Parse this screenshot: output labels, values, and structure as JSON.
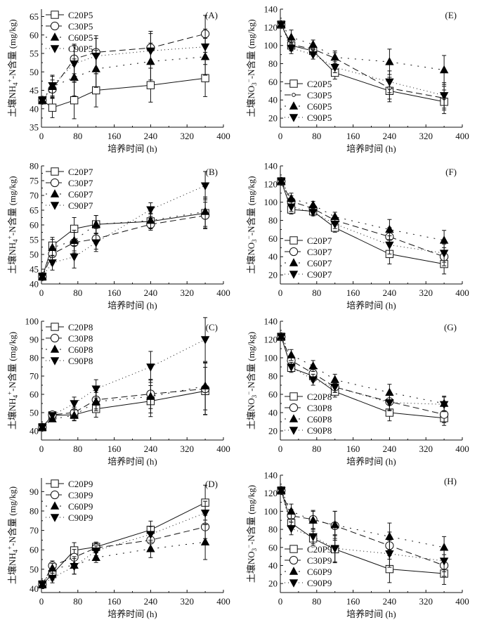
{
  "chart_data": [
    {
      "id": "A",
      "type": "line",
      "panel_label": "(A)",
      "xlabel": "培养时间 (h)",
      "ylabel_pre": "土壤NH",
      "ylabel_sub": "4",
      "ylabel_sup": "+",
      "ylabel_post": "-N含量 (mg/kg)",
      "xlim": [
        0,
        400
      ],
      "ylim": [
        35,
        67
      ],
      "xticks": [
        0,
        80,
        160,
        240,
        320,
        400
      ],
      "yticks": [
        35,
        40,
        45,
        50,
        55,
        60,
        65
      ],
      "legend_position": "top-left",
      "x": [
        2,
        24,
        72,
        120,
        240,
        360
      ],
      "series": [
        {
          "name": "C20P5",
          "marker": "square-open",
          "line": "solid",
          "values": [
            42.3,
            40.3,
            42.3,
            45.0,
            46.4,
            48.3
          ],
          "errors": [
            1.0,
            2.7,
            5.0,
            4.5,
            4.6,
            5.0
          ]
        },
        {
          "name": "C30P5",
          "marker": "circle-open",
          "line": "dashed",
          "values": [
            42.3,
            45.3,
            53.5,
            55.3,
            56.5,
            60.3
          ],
          "errors": [
            1.0,
            2.5,
            4.0,
            4.5,
            4.5,
            5.0
          ]
        },
        {
          "name": "C60P5",
          "marker": "triangle-up",
          "line": "dashdot",
          "values": [
            42.3,
            46.0,
            48.5,
            50.8,
            52.8,
            54.1
          ],
          "errors": [
            1.0,
            2.8,
            5.0,
            5.0,
            5.0,
            5.0
          ]
        },
        {
          "name": "C90P5",
          "marker": "triangle-down",
          "line": "dotted",
          "values": [
            42.3,
            46.3,
            52.2,
            54.3,
            55.7,
            56.8
          ],
          "errors": [
            1.0,
            2.8,
            5.0,
            4.8,
            4.7,
            4.8
          ]
        }
      ]
    },
    {
      "id": "E",
      "type": "line",
      "panel_label": "(E)",
      "xlabel": "培养时间 (h)",
      "ylabel_pre": "土壤NO",
      "ylabel_sub": "3",
      "ylabel_sup": "−",
      "ylabel_post": "-N含量 (mg/kg)",
      "xlim": [
        0,
        400
      ],
      "ylim": [
        10,
        140
      ],
      "xticks": [
        0,
        80,
        160,
        240,
        320,
        400
      ],
      "yticks": [
        20,
        40,
        60,
        80,
        100,
        120,
        140
      ],
      "legend_position": "bottom-left",
      "x": [
        2,
        24,
        72,
        120,
        240,
        360
      ],
      "series": [
        {
          "name": "C20P5",
          "marker": "square-open",
          "line": "solid",
          "values": [
            123,
            100,
            94,
            70,
            50,
            38
          ],
          "errors": [
            3,
            6,
            5,
            7,
            12,
            13
          ]
        },
        {
          "name": "C30P5",
          "marker": "circle-small",
          "line": "dashed",
          "values": [
            123,
            101,
            96,
            86,
            53,
            42
          ],
          "errors": [
            3,
            6,
            5,
            6,
            12,
            13
          ]
        },
        {
          "name": "C60P5",
          "marker": "triangle-up",
          "line": "dashdot",
          "values": [
            123,
            109,
            101,
            87,
            82,
            73
          ],
          "errors": [
            3,
            8,
            5,
            7,
            14,
            16
          ]
        },
        {
          "name": "C90P5",
          "marker": "triangle-down",
          "line": "dotted",
          "values": [
            123,
            97,
            90,
            76,
            60,
            45
          ],
          "errors": [
            3,
            6,
            5,
            6,
            12,
            14
          ]
        }
      ]
    },
    {
      "id": "B",
      "type": "line",
      "panel_label": "(B)",
      "xlabel": "培养时间 (h)",
      "ylabel_pre": "土壤NH",
      "ylabel_sub": "4",
      "ylabel_sup": "+",
      "ylabel_post": "-N含量 (mg/kg)",
      "xlim": [
        0,
        400
      ],
      "ylim": [
        40,
        80
      ],
      "xticks": [
        0,
        80,
        160,
        240,
        320,
        400
      ],
      "yticks": [
        40,
        45,
        50,
        55,
        60,
        65,
        70,
        75,
        80
      ],
      "legend_position": "top-left",
      "x": [
        2,
        24,
        72,
        120,
        240,
        360
      ],
      "series": [
        {
          "name": "C20P7",
          "marker": "square-open",
          "line": "solid",
          "values": [
            42.5,
            53.0,
            58.7,
            60.2,
            61.2,
            64.0
          ],
          "errors": [
            1.0,
            2.8,
            3.8,
            3.0,
            2.5,
            5.0
          ]
        },
        {
          "name": "C30P7",
          "marker": "circle-open",
          "line": "dashed",
          "values": [
            42.5,
            50.2,
            54.0,
            55.3,
            60.2,
            63.2
          ],
          "errors": [
            1.0,
            2.5,
            3.5,
            3.5,
            2.0,
            4.5
          ]
        },
        {
          "name": "C60P7",
          "marker": "triangle-up",
          "line": "dashdot",
          "values": [
            42.5,
            52.3,
            54.7,
            60.2,
            61.5,
            64.5
          ],
          "errors": [
            1.0,
            2.8,
            3.5,
            3.0,
            2.5,
            5.0
          ]
        },
        {
          "name": "C90P7",
          "marker": "triangle-down",
          "line": "dotted",
          "values": [
            42.5,
            47.2,
            49.2,
            54.0,
            65.2,
            73.3
          ],
          "errors": [
            1.0,
            2.5,
            3.8,
            3.0,
            2.3,
            4.8
          ]
        }
      ]
    },
    {
      "id": "F",
      "type": "line",
      "panel_label": "(F)",
      "xlabel": "培养时间 (h)",
      "ylabel_pre": "土壤NO",
      "ylabel_sub": "3",
      "ylabel_sup": "−",
      "ylabel_post": "-N含量 (mg/kg)",
      "xlim": [
        0,
        400
      ],
      "ylim": [
        10,
        140
      ],
      "xticks": [
        0,
        80,
        160,
        240,
        320,
        400
      ],
      "yticks": [
        20,
        40,
        60,
        80,
        100,
        120,
        140
      ],
      "legend_position": "bottom-left",
      "x": [
        2,
        24,
        72,
        120,
        240,
        360
      ],
      "series": [
        {
          "name": "C20P7",
          "marker": "square-open",
          "line": "solid",
          "values": [
            123,
            92,
            90,
            72,
            43,
            32
          ],
          "errors": [
            3,
            5,
            4,
            5,
            11,
            11
          ]
        },
        {
          "name": "C30P7",
          "marker": "circle-open",
          "line": "dashed",
          "values": [
            123,
            101,
            93,
            80,
            62,
            40
          ],
          "errors": [
            3,
            6,
            4,
            5,
            10,
            10
          ]
        },
        {
          "name": "C60P7",
          "marker": "triangle-up",
          "line": "dashdot",
          "values": [
            123,
            104,
            97,
            84,
            70,
            58
          ],
          "errors": [
            3,
            6,
            4,
            5,
            11,
            11
          ]
        },
        {
          "name": "C90P7",
          "marker": "triangle-down",
          "line": "dotted",
          "values": [
            123,
            95,
            89,
            76,
            53,
            44
          ],
          "errors": [
            3,
            5,
            4,
            5,
            10,
            10
          ]
        }
      ]
    },
    {
      "id": "C",
      "type": "line",
      "panel_label": "(C)",
      "xlabel": "培养时间 (h)",
      "ylabel_pre": "土壤NH",
      "ylabel_sub": "4",
      "ylabel_sup": "+",
      "ylabel_post": "-N含量 (mg/kg)",
      "xlim": [
        0,
        400
      ],
      "ylim": [
        35,
        100
      ],
      "xticks": [
        0,
        80,
        160,
        240,
        320,
        400
      ],
      "yticks": [
        40,
        50,
        60,
        70,
        80,
        90,
        100
      ],
      "legend_position": "top-left",
      "x": [
        2,
        24,
        72,
        120,
        240,
        360
      ],
      "series": [
        {
          "name": "C20P8",
          "marker": "square-open",
          "line": "solid",
          "values": [
            42.0,
            48.5,
            48.8,
            52.0,
            56.3,
            61.8
          ],
          "errors": [
            1.0,
            1.5,
            3.0,
            4.5,
            8.5,
            13.0
          ]
        },
        {
          "name": "C30P8",
          "marker": "circle-open",
          "line": "dashed",
          "values": [
            42.0,
            48.8,
            50.0,
            57.0,
            60.2,
            63.0
          ],
          "errors": [
            1.0,
            1.5,
            3.0,
            5.0,
            8.0,
            14.0
          ]
        },
        {
          "name": "C60P8",
          "marker": "triangle-up",
          "line": "dashdot",
          "values": [
            42.0,
            46.5,
            48.5,
            56.0,
            58.8,
            64.5
          ],
          "errors": [
            1.0,
            1.5,
            3.0,
            5.0,
            9.0,
            13.0
          ]
        },
        {
          "name": "C90P8",
          "marker": "triangle-down",
          "line": "dotted",
          "values": [
            42.0,
            48.5,
            55.0,
            63.0,
            75.0,
            90.0
          ],
          "errors": [
            1.0,
            1.5,
            3.5,
            5.0,
            8.5,
            12.0
          ]
        }
      ]
    },
    {
      "id": "G",
      "type": "line",
      "panel_label": "(G)",
      "xlabel": "培养时间 (h)",
      "ylabel_pre": "土壤NO",
      "ylabel_sub": "3",
      "ylabel_sup": "−",
      "ylabel_post": "-N含量 (mg/kg)",
      "xlim": [
        0,
        400
      ],
      "ylim": [
        10,
        140
      ],
      "xticks": [
        0,
        80,
        160,
        240,
        320,
        400
      ],
      "yticks": [
        20,
        40,
        60,
        80,
        100,
        120,
        140
      ],
      "legend_position": "bottom-left",
      "x": [
        2,
        24,
        72,
        120,
        240,
        360
      ],
      "series": [
        {
          "name": "C20P8",
          "marker": "square-open",
          "line": "solid",
          "values": [
            123,
            89,
            80,
            63,
            40,
            34
          ],
          "errors": [
            3,
            5,
            6,
            6,
            9,
            8
          ]
        },
        {
          "name": "C30P8",
          "marker": "circle-open",
          "line": "dashed",
          "values": [
            123,
            97,
            83,
            68,
            52,
            38
          ],
          "errors": [
            3,
            6,
            6,
            6,
            9,
            9
          ]
        },
        {
          "name": "C60P8",
          "marker": "triangle-up",
          "line": "dashdot",
          "values": [
            123,
            103,
            91,
            76,
            62,
            50
          ],
          "errors": [
            3,
            6,
            6,
            6,
            9,
            8
          ]
        },
        {
          "name": "C90P8",
          "marker": "triangle-down",
          "line": "dotted",
          "values": [
            123,
            90,
            76,
            68,
            51,
            49
          ],
          "errors": [
            3,
            5,
            6,
            6,
            9,
            8
          ]
        }
      ]
    },
    {
      "id": "D",
      "type": "line",
      "panel_label": "(D)",
      "xlabel": "培养时间 (h)",
      "ylabel_pre": "土壤NH",
      "ylabel_sub": "4",
      "ylabel_sup": "+",
      "ylabel_post": "-N含量 (mg/kg)",
      "xlim": [
        0,
        400
      ],
      "ylim": [
        38,
        97
      ],
      "xticks": [
        0,
        80,
        160,
        240,
        320,
        400
      ],
      "yticks": [
        40,
        50,
        60,
        70,
        80,
        90
      ],
      "legend_position": "top-left",
      "x": [
        2,
        24,
        72,
        120,
        240,
        360
      ],
      "series": [
        {
          "name": "C20P9",
          "marker": "square-open",
          "line": "solid",
          "values": [
            42.2,
            47.5,
            59.7,
            61.5,
            70.3,
            84.3
          ],
          "errors": [
            1.0,
            3.0,
            4.0,
            2.5,
            4.5,
            9.0
          ]
        },
        {
          "name": "C30P9",
          "marker": "circle-open",
          "line": "dashed",
          "values": [
            42.2,
            51.8,
            56.2,
            61.0,
            65.0,
            71.8
          ],
          "errors": [
            1.0,
            2.5,
            4.0,
            2.5,
            4.0,
            6.0
          ]
        },
        {
          "name": "C60P9",
          "marker": "triangle-up",
          "line": "dashdot",
          "values": [
            42.2,
            50.5,
            52.0,
            56.0,
            60.5,
            64.0
          ],
          "errors": [
            1.0,
            2.5,
            4.5,
            2.5,
            4.5,
            9.0
          ]
        },
        {
          "name": "C90P9",
          "marker": "triangle-down",
          "line": "dotted",
          "values": [
            42.2,
            45.5,
            51.5,
            59.5,
            68.0,
            79.0
          ],
          "errors": [
            1.0,
            2.5,
            4.0,
            2.5,
            4.0,
            6.0
          ]
        }
      ]
    },
    {
      "id": "H",
      "type": "line",
      "panel_label": "(H)",
      "xlabel": "培养时间 (h)",
      "ylabel_pre": "土壤NO",
      "ylabel_sub": "3",
      "ylabel_sup": "−",
      "ylabel_post": "-N含量 (mg/kg)",
      "xlim": [
        0,
        400
      ],
      "ylim": [
        10,
        140
      ],
      "xticks": [
        0,
        80,
        160,
        240,
        320,
        400
      ],
      "yticks": [
        20,
        40,
        60,
        80,
        100,
        120,
        140
      ],
      "legend_position": "bottom-left",
      "x": [
        2,
        24,
        72,
        120,
        240,
        360
      ],
      "series": [
        {
          "name": "C20P9",
          "marker": "square-open",
          "line": "solid",
          "values": [
            123,
            87,
            70,
            58,
            36,
            31
          ],
          "errors": [
            3,
            6,
            8,
            15,
            15,
            12
          ]
        },
        {
          "name": "C30P9",
          "marker": "circle-open",
          "line": "dashed",
          "values": [
            123,
            95,
            91,
            84,
            62,
            40
          ],
          "errors": [
            3,
            7,
            10,
            16,
            15,
            12
          ]
        },
        {
          "name": "C60P9",
          "marker": "triangle-up",
          "line": "dashdot",
          "values": [
            123,
            100,
            90,
            85,
            72,
            60
          ],
          "errors": [
            3,
            8,
            10,
            15,
            15,
            12
          ]
        },
        {
          "name": "C90P9",
          "marker": "triangle-down",
          "line": "dotted",
          "values": [
            123,
            81,
            72,
            59,
            53,
            45
          ],
          "errors": [
            3,
            7,
            8,
            15,
            15,
            12
          ]
        }
      ]
    }
  ]
}
